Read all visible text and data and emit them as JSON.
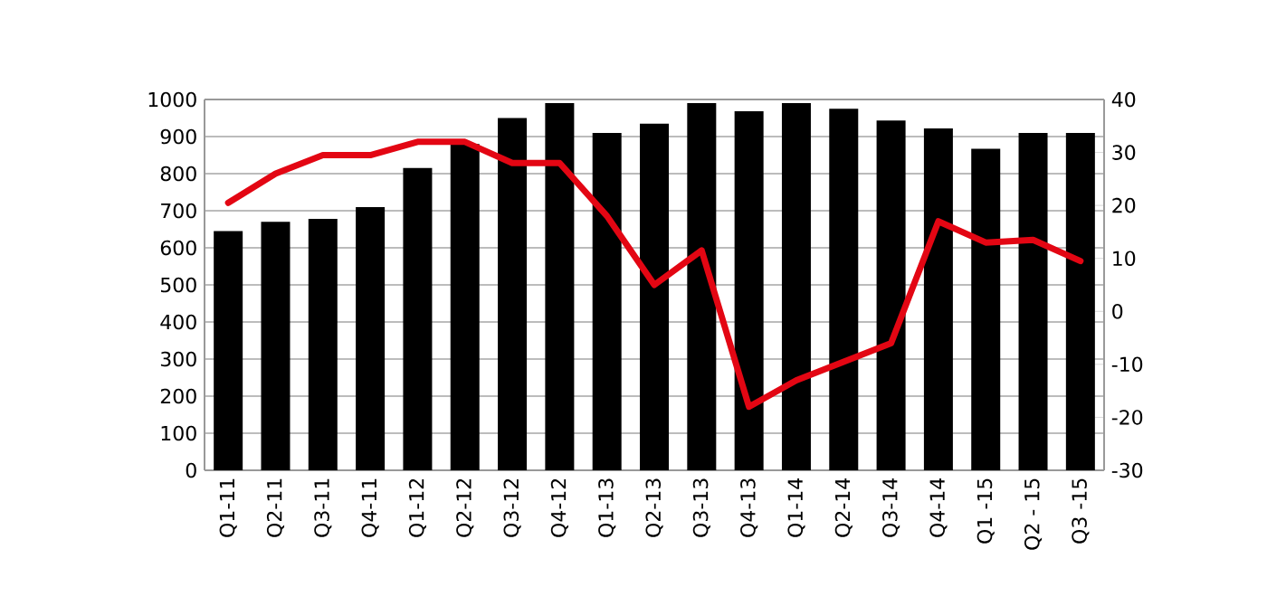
{
  "chart_data": {
    "type": "bar",
    "categories": [
      "Q1-11",
      "Q2-11",
      "Q3-11",
      "Q4-11",
      "Q1-12",
      "Q2-12",
      "Q3-12",
      "Q4-12",
      "Q1-13",
      "Q2-13",
      "Q3-13",
      "Q4-13",
      "Q1-14",
      "Q2-14",
      "Q3-14",
      "Q4-14",
      "Q1 -15",
      "Q2 - 15",
      "Q3 -15"
    ],
    "series": [
      {
        "color": "#000000",
        "values": [
          645,
          670,
          678,
          710,
          815,
          880,
          950,
          990,
          910,
          935,
          990,
          968,
          990,
          975,
          943,
          922,
          867,
          910,
          910
        ]
      },
      {
        "type": "line",
        "color": "#e30613",
        "axis": "y2",
        "values": [
          20.5,
          26,
          29.5,
          29.5,
          32,
          32,
          28,
          28,
          18,
          5,
          11.5,
          -18,
          -13,
          -9.5,
          -6,
          17,
          13,
          13.5,
          9.5
        ]
      }
    ],
    "ylim": [
      0,
      1000
    ],
    "yticks": [
      0,
      100,
      200,
      300,
      400,
      500,
      600,
      700,
      800,
      900,
      1000
    ],
    "y2lim": [
      -30,
      40
    ],
    "y2ticks": [
      -30,
      -20,
      -10,
      0,
      10,
      20,
      30,
      40
    ],
    "grid": "y"
  }
}
